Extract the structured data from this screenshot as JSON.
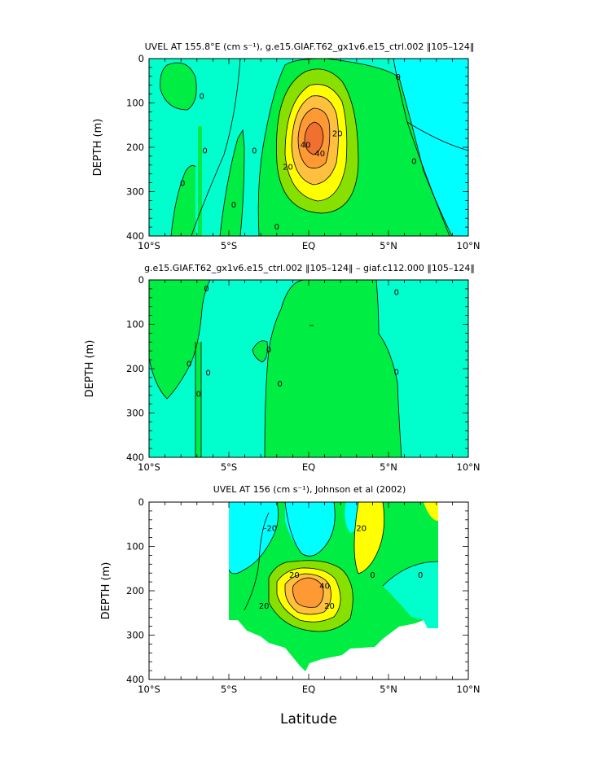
{
  "figure": {
    "xlabel": "Latitude"
  },
  "colors": {
    "negative": "#00FFFF",
    "weak_negative": "#00FFCC",
    "weak_positive": "#00EE44",
    "positive": "#88E000",
    "mid": "#FFFF00",
    "high": "#FFC040",
    "core": "#FF9933"
  },
  "chart_data": [
    {
      "type": "contour",
      "title": "UVEL AT 155.8°E (cm s⁻¹), g.e15.GIAF.T62_gx1v6.e15_ctrl.002 ‖105–124‖",
      "ylabel": "DEPTH (m)",
      "xlim": [
        -10,
        10
      ],
      "ylim": [
        400,
        0
      ],
      "x_ticks": [
        "10°S",
        "5°S",
        "EQ",
        "5°N",
        "10°N"
      ],
      "y_ticks": [
        "0",
        "100",
        "200",
        "300",
        "400"
      ],
      "contour_labels": [
        {
          "text": "0",
          "x": -6.7,
          "y": 85
        },
        {
          "text": "0",
          "x": -6.5,
          "y": 208
        },
        {
          "text": "0",
          "x": -7.9,
          "y": 282
        },
        {
          "text": "0",
          "x": -4.7,
          "y": 330
        },
        {
          "text": "0",
          "x": -3.4,
          "y": 208
        },
        {
          "text": "0",
          "x": -2.0,
          "y": 380
        },
        {
          "text": "0",
          "x": 5.6,
          "y": 42
        },
        {
          "text": "0",
          "x": 6.6,
          "y": 232
        },
        {
          "text": "20",
          "x": 1.8,
          "y": 170
        },
        {
          "text": "20",
          "x": -1.3,
          "y": 245
        },
        {
          "text": "40",
          "x": 0.7,
          "y": 215
        },
        {
          "text": "40",
          "x": -0.2,
          "y": 195
        }
      ],
      "core": {
        "lat": 0.0,
        "depth": 175,
        "max_speed": 60
      }
    },
    {
      "type": "contour",
      "title": "g.e15.GIAF.T62_gx1v6.e15_ctrl.002 ‖105–124‖ – giaf.c112.000 ‖105–124‖",
      "ylabel": "DEPTH (m)",
      "xlim": [
        -10,
        10
      ],
      "ylim": [
        400,
        0
      ],
      "x_ticks": [
        "10°S",
        "5°S",
        "EQ",
        "5°N",
        "10°N"
      ],
      "y_ticks": [
        "0",
        "100",
        "200",
        "300",
        "400"
      ],
      "contour_labels": [
        {
          "text": "0",
          "x": -6.4,
          "y": 20
        },
        {
          "text": "0",
          "x": -7.5,
          "y": 190
        },
        {
          "text": "0",
          "x": -6.3,
          "y": 210
        },
        {
          "text": "0",
          "x": -6.9,
          "y": 258
        },
        {
          "text": "0",
          "x": -2.5,
          "y": 158
        },
        {
          "text": "0",
          "x": -1.8,
          "y": 235
        },
        {
          "text": "0",
          "x": 5.5,
          "y": 28
        },
        {
          "text": "0",
          "x": 5.5,
          "y": 208
        }
      ]
    },
    {
      "type": "contour",
      "title": "UVEL AT 156 (cm s⁻¹), Johnson et al (2002)",
      "ylabel": "DEPTH (m)",
      "xlim": [
        -10,
        10
      ],
      "ylim": [
        400,
        0
      ],
      "x_ticks": [
        "10°S",
        "5°S",
        "EQ",
        "5°N",
        "10°N"
      ],
      "y_ticks": [
        "0",
        "100",
        "200",
        "300",
        "400"
      ],
      "contour_labels": [
        {
          "text": "-20",
          "x": -2.4,
          "y": 60
        },
        {
          "text": "20",
          "x": -0.9,
          "y": 165
        },
        {
          "text": "40",
          "x": 1.0,
          "y": 190
        },
        {
          "text": "20",
          "x": -2.8,
          "y": 235
        },
        {
          "text": "20",
          "x": 1.3,
          "y": 235
        },
        {
          "text": "20",
          "x": 3.3,
          "y": 60
        },
        {
          "text": "0",
          "x": 4.0,
          "y": 165
        },
        {
          "text": "0",
          "x": 7.0,
          "y": 165
        }
      ],
      "core": {
        "lat": -0.4,
        "depth": 200,
        "max_speed": 60
      }
    }
  ]
}
